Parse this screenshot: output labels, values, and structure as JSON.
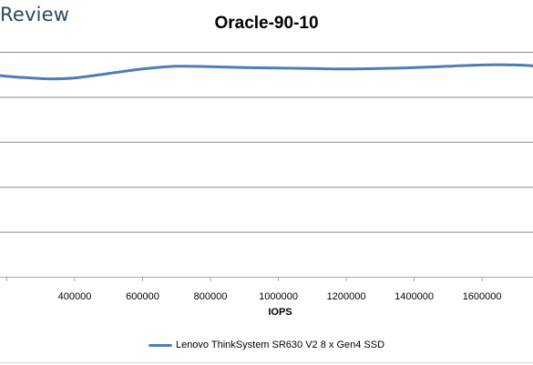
{
  "brand": {
    "text": "Review"
  },
  "chart_data": {
    "type": "line",
    "title": "Oracle-90-10",
    "xlabel": "IOPS",
    "ylabel": "",
    "xlim": [
      180000,
      1750000
    ],
    "ylim": [
      0,
      5
    ],
    "x_ticks": [
      400000,
      600000,
      800000,
      1000000,
      1200000,
      1400000,
      1600000
    ],
    "x_tick_labels": [
      "400000",
      "600000",
      "800000",
      "1000000",
      "1200000",
      "1400000",
      "1600000"
    ],
    "grid": true,
    "legend_position": "bottom",
    "series": [
      {
        "name": "Lenovo ThinkSystem SR630 V2 8 x Gen4 SSD",
        "color": "#4e7db6",
        "x": [
          180000,
          250000,
          330000,
          400000,
          500000,
          600000,
          700000,
          800000,
          900000,
          1000000,
          1100000,
          1200000,
          1300000,
          1400000,
          1500000,
          1600000,
          1700000,
          1750000
        ],
        "y": [
          4.47,
          4.43,
          4.4,
          4.42,
          4.52,
          4.62,
          4.68,
          4.67,
          4.65,
          4.64,
          4.63,
          4.62,
          4.63,
          4.65,
          4.68,
          4.71,
          4.71,
          4.69
        ]
      }
    ]
  }
}
